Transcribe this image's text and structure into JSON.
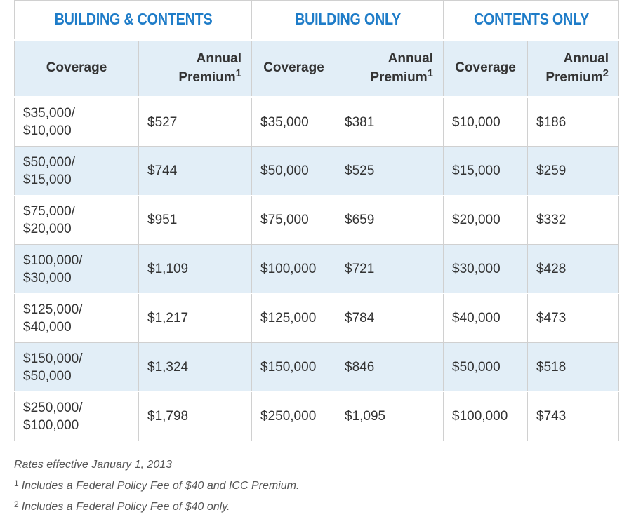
{
  "groups": {
    "building_contents": "BUILDING & CONTENTS",
    "building_only": "BUILDING ONLY",
    "contents_only": "CONTENTS ONLY"
  },
  "column_headers": {
    "coverage": "Coverage",
    "annual": "Annual",
    "premium": "Premium",
    "sup1": "1",
    "sup2": "2"
  },
  "rows": [
    {
      "bc_coverage_line1": "$35,000/",
      "bc_coverage_line2": "$10,000",
      "bc_premium": "$527",
      "b_coverage": "$35,000",
      "b_premium": "$381",
      "c_coverage": "$10,000",
      "c_premium": "$186"
    },
    {
      "bc_coverage_line1": "$50,000/",
      "bc_coverage_line2": "$15,000",
      "bc_premium": "$744",
      "b_coverage": "$50,000",
      "b_premium": "$525",
      "c_coverage": "$15,000",
      "c_premium": "$259"
    },
    {
      "bc_coverage_line1": "$75,000/",
      "bc_coverage_line2": "$20,000",
      "bc_premium": "$951",
      "b_coverage": "$75,000",
      "b_premium": "$659",
      "c_coverage": "$20,000",
      "c_premium": "$332"
    },
    {
      "bc_coverage_line1": "$100,000/",
      "bc_coverage_line2": "$30,000",
      "bc_premium": "$1,109",
      "b_coverage": "$100,000",
      "b_premium": "$721",
      "c_coverage": "$30,000",
      "c_premium": "$428"
    },
    {
      "bc_coverage_line1": "$125,000/",
      "bc_coverage_line2": "$40,000",
      "bc_premium": "$1,217",
      "b_coverage": "$125,000",
      "b_premium": "$784",
      "c_coverage": "$40,000",
      "c_premium": "$473"
    },
    {
      "bc_coverage_line1": "$150,000/",
      "bc_coverage_line2": "$50,000",
      "bc_premium": "$1,324",
      "b_coverage": "$150,000",
      "b_premium": "$846",
      "c_coverage": "$50,000",
      "c_premium": "$518"
    },
    {
      "bc_coverage_line1": "$250,000/",
      "bc_coverage_line2": "$100,000",
      "bc_premium": "$1,798",
      "b_coverage": "$250,000",
      "b_premium": "$1,095",
      "c_coverage": "$100,000",
      "c_premium": "$743"
    }
  ],
  "notes": {
    "effective": "Rates effective January 1, 2013",
    "note1_marker": "1",
    "note1_text": "Includes a Federal Policy Fee of $40 and ICC Premium.",
    "note2_marker": "2",
    "note2_text": "Includes a Federal Policy Fee of $40 only."
  },
  "colors": {
    "group_header": "#1e7cc8",
    "shaded_row": "#e2eef7",
    "border": "#d0d0d0",
    "text": "#333333"
  }
}
